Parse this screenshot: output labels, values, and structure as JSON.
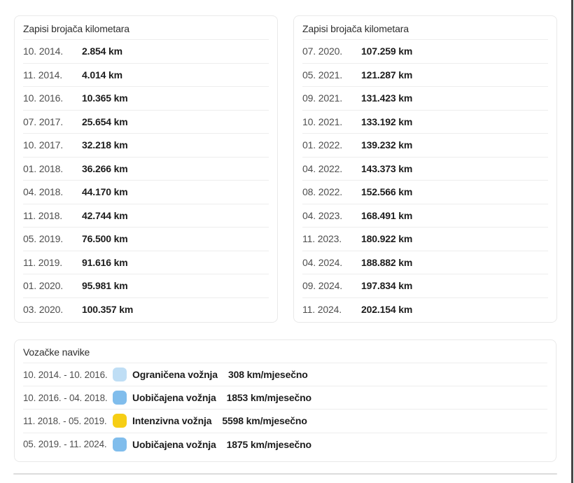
{
  "theme": {
    "card_border": "#e9e9e9",
    "divider": "#ededed",
    "date_color": "#4e4e4e",
    "value_color": "#1c1c1c",
    "bottom_divider": "#dcdcdc",
    "right_edge": "#464646"
  },
  "odometer_cards": [
    {
      "title": "Zapisi brojača kilometara",
      "rows": [
        {
          "date": "10. 2014.",
          "value": "2.854 km"
        },
        {
          "date": "11. 2014.",
          "value": "4.014 km"
        },
        {
          "date": "10. 2016.",
          "value": "10.365 km"
        },
        {
          "date": "07. 2017.",
          "value": "25.654 km"
        },
        {
          "date": "10. 2017.",
          "value": "32.218 km"
        },
        {
          "date": "01. 2018.",
          "value": "36.266 km"
        },
        {
          "date": "04. 2018.",
          "value": "44.170 km"
        },
        {
          "date": "11. 2018.",
          "value": "42.744 km"
        },
        {
          "date": "05. 2019.",
          "value": "76.500 km"
        },
        {
          "date": "11. 2019.",
          "value": "91.616 km"
        },
        {
          "date": "01. 2020.",
          "value": "95.981 km"
        },
        {
          "date": "03. 2020.",
          "value": "100.357 km"
        }
      ]
    },
    {
      "title": "Zapisi brojača kilometara",
      "rows": [
        {
          "date": "07. 2020.",
          "value": "107.259 km"
        },
        {
          "date": "05. 2021.",
          "value": "121.287 km"
        },
        {
          "date": "09. 2021.",
          "value": "131.423 km"
        },
        {
          "date": "10. 2021.",
          "value": "133.192 km"
        },
        {
          "date": "01. 2022.",
          "value": "139.232 km"
        },
        {
          "date": "04. 2022.",
          "value": "143.373 km"
        },
        {
          "date": "08. 2022.",
          "value": "152.566 km"
        },
        {
          "date": "04. 2023.",
          "value": "168.491 km"
        },
        {
          "date": "11. 2023.",
          "value": "180.922 km"
        },
        {
          "date": "04. 2024.",
          "value": "188.882 km"
        },
        {
          "date": "09. 2024.",
          "value": "197.834 km"
        },
        {
          "date": "11. 2024.",
          "value": "202.154 km"
        }
      ]
    }
  ],
  "driving_habits": {
    "title": "Vozačke navike",
    "rows": [
      {
        "period": "10. 2014. - 10. 2016.",
        "swatch_color": "#bfdef5",
        "label": "Ograničena vožnja",
        "value": "308 km/mjesečno"
      },
      {
        "period": "10. 2016. - 04. 2018.",
        "swatch_color": "#80bdec",
        "label": "Uobičajena vožnja",
        "value": "1853 km/mjesečno"
      },
      {
        "period": "11. 2018. - 05. 2019.",
        "swatch_color": "#f6ce15",
        "label": "Intenzivna vožnja",
        "value": "5598 km/mjesečno"
      },
      {
        "period": "05. 2019. - 11. 2024.",
        "swatch_color": "#80bdec",
        "label": "Uobičajena vožnja",
        "value": "1875 km/mjesečno"
      }
    ]
  }
}
